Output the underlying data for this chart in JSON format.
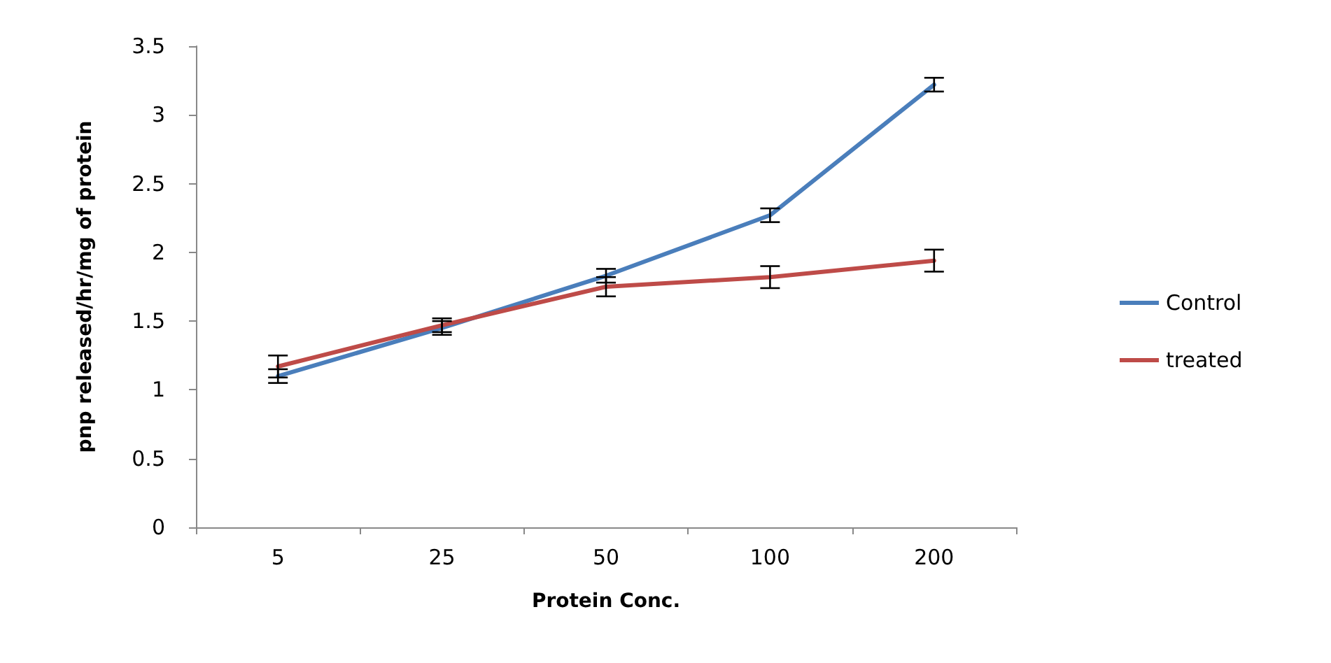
{
  "chart_data": {
    "type": "line",
    "xlabel": "Protein Conc.",
    "ylabel": "pnp released/hr/mg of protein",
    "categories": [
      "5",
      "25",
      "50",
      "100",
      "200"
    ],
    "series": [
      {
        "name": "Control",
        "color": "#4a7ebb",
        "values": [
          1.1,
          1.45,
          1.83,
          2.27,
          3.22
        ],
        "errors": [
          0.05,
          0.05,
          0.05,
          0.05,
          0.05
        ]
      },
      {
        "name": "treated",
        "color": "#be4b48",
        "values": [
          1.17,
          1.47,
          1.75,
          1.82,
          1.94
        ],
        "errors": [
          0.08,
          0.05,
          0.07,
          0.08,
          0.08
        ]
      }
    ],
    "ylim": [
      0,
      3.5
    ],
    "yticks": [
      0,
      0.5,
      1,
      1.5,
      2,
      2.5,
      3,
      3.5
    ],
    "grid": false,
    "legend": "right",
    "marker": "none",
    "line_style": "solid"
  }
}
